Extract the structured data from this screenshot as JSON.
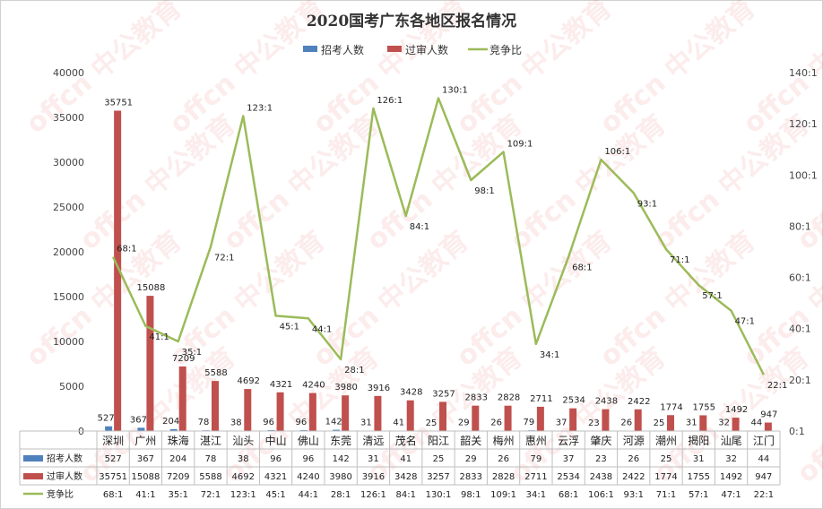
{
  "chart_data": {
    "type": "bar",
    "title": "2020国考广东各地区报名情况",
    "categories": [
      "深圳",
      "广州",
      "珠海",
      "湛江",
      "汕头",
      "中山",
      "佛山",
      "东莞",
      "清远",
      "茂名",
      "阳江",
      "韶关",
      "梅州",
      "惠州",
      "云浮",
      "肇庆",
      "河源",
      "潮州",
      "揭阳",
      "汕尾",
      "江门"
    ],
    "series": [
      {
        "name": "招考人数",
        "type": "bar",
        "axis": "left",
        "color": "#4f81bd",
        "values": [
          527,
          367,
          204,
          78,
          38,
          96,
          96,
          142,
          31,
          41,
          25,
          29,
          26,
          79,
          37,
          23,
          26,
          25,
          31,
          32,
          44
        ]
      },
      {
        "name": "过审人数",
        "type": "bar",
        "axis": "left",
        "color": "#c0504d",
        "values": [
          35751,
          15088,
          7209,
          5588,
          4692,
          4321,
          4240,
          3980,
          3916,
          3428,
          3257,
          2833,
          2828,
          2711,
          2534,
          2438,
          2422,
          1774,
          1755,
          1492,
          947
        ]
      },
      {
        "name": "竞争比",
        "type": "line",
        "axis": "right",
        "color": "#9bbb59",
        "values": [
          68,
          41,
          35,
          72,
          123,
          45,
          44,
          28,
          126,
          84,
          130,
          98,
          109,
          34,
          68,
          106,
          93,
          71,
          57,
          47,
          22
        ],
        "labels": [
          "68:1",
          "41:1",
          "35:1",
          "72:1",
          "123:1",
          "45:1",
          "44:1",
          "28:1",
          "126:1",
          "84:1",
          "130:1",
          "98:1",
          "109:1",
          "34:1",
          "68:1",
          "106:1",
          "93:1",
          "71:1",
          "57:1",
          "47:1",
          "22:1"
        ]
      }
    ],
    "ylim_left": [
      0,
      40000
    ],
    "yticks_left": [
      "0",
      "5000",
      "10000",
      "15000",
      "20000",
      "25000",
      "30000",
      "35000",
      "40000"
    ],
    "ylim_right": [
      0,
      140
    ],
    "yticks_right": [
      "0:1",
      "20:1",
      "40:1",
      "60:1",
      "80:1",
      "100:1",
      "120:1",
      "140:1"
    ],
    "legend_position": "top",
    "grid": false,
    "has_data_table": true,
    "watermark": "offcn 中公教育"
  }
}
